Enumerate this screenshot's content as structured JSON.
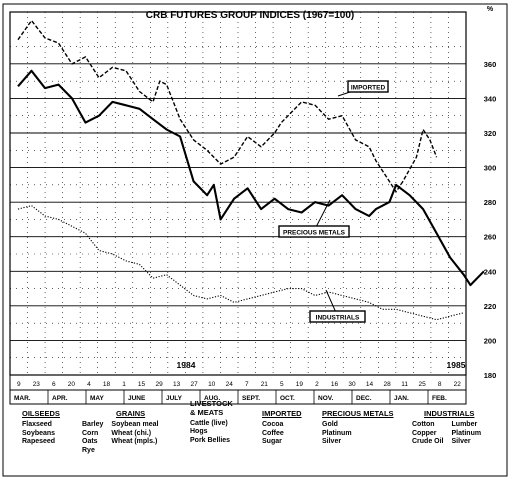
{
  "chart_data": {
    "type": "line",
    "title": "CRB FUTURES GROUP INDICES (1967=100)",
    "y_unit_label": "%",
    "ylim": [
      180,
      390
    ],
    "yticks": [
      180,
      200,
      220,
      240,
      260,
      280,
      300,
      320,
      340,
      360
    ],
    "year_labels": [
      "1984",
      "1985"
    ],
    "day_ticks": [
      "9",
      "23",
      "6",
      "20",
      "4",
      "18",
      "1",
      "15",
      "29",
      "13",
      "27",
      "10",
      "24",
      "7",
      "21",
      "5",
      "19",
      "2",
      "16",
      "30",
      "14",
      "28",
      "11",
      "25",
      "8",
      "22"
    ],
    "month_labels": [
      "MAR.",
      "APR.",
      "MAY",
      "JUNE",
      "JULY",
      "AUG.",
      "SEPT.",
      "OCT.",
      "NOV.",
      "DEC.",
      "JAN.",
      "FEB."
    ],
    "x_week_range": [
      0,
      52
    ],
    "series": [
      {
        "name": "IMPORTED",
        "style": "dashed",
        "points": [
          [
            0,
            374
          ],
          [
            2,
            385
          ],
          [
            4,
            375
          ],
          [
            6,
            372
          ],
          [
            8,
            360
          ],
          [
            10,
            364
          ],
          [
            12,
            352
          ],
          [
            14,
            358
          ],
          [
            16,
            356
          ],
          [
            18,
            344
          ],
          [
            20,
            338
          ],
          [
            21,
            350
          ],
          [
            22,
            348
          ],
          [
            24,
            328
          ],
          [
            26,
            316
          ],
          [
            28,
            310
          ],
          [
            30,
            302
          ],
          [
            32,
            306
          ],
          [
            34,
            318
          ],
          [
            36,
            312
          ],
          [
            38,
            320
          ],
          [
            39,
            326
          ],
          [
            40,
            330
          ],
          [
            42,
            338
          ],
          [
            44,
            336
          ],
          [
            46,
            328
          ],
          [
            48,
            330
          ],
          [
            50,
            316
          ],
          [
            52,
            312
          ],
          [
            53,
            304
          ],
          [
            55,
            292
          ],
          [
            56,
            286
          ],
          [
            57,
            292
          ],
          [
            59,
            306
          ],
          [
            60,
            322
          ],
          [
            61,
            316
          ],
          [
            62,
            306
          ]
        ]
      },
      {
        "name": "PRECIOUS METALS",
        "style": "solid",
        "points": [
          [
            0,
            347
          ],
          [
            2,
            356
          ],
          [
            4,
            346
          ],
          [
            6,
            348
          ],
          [
            8,
            340
          ],
          [
            10,
            326
          ],
          [
            12,
            330
          ],
          [
            14,
            338
          ],
          [
            16,
            336
          ],
          [
            18,
            334
          ],
          [
            20,
            328
          ],
          [
            22,
            322
          ],
          [
            24,
            318
          ],
          [
            26,
            292
          ],
          [
            28,
            284
          ],
          [
            29,
            290
          ],
          [
            30,
            270
          ],
          [
            32,
            282
          ],
          [
            34,
            288
          ],
          [
            36,
            276
          ],
          [
            38,
            282
          ],
          [
            40,
            276
          ],
          [
            42,
            274
          ],
          [
            44,
            280
          ],
          [
            46,
            278
          ],
          [
            48,
            284
          ],
          [
            50,
            276
          ],
          [
            52,
            272
          ],
          [
            53,
            276
          ],
          [
            55,
            280
          ],
          [
            56,
            290
          ],
          [
            58,
            284
          ],
          [
            60,
            276
          ],
          [
            62,
            262
          ],
          [
            64,
            248
          ],
          [
            66,
            238
          ],
          [
            67,
            232
          ],
          [
            69,
            240
          ]
        ]
      },
      {
        "name": "INDUSTRIALS",
        "style": "dotted",
        "points": [
          [
            0,
            276
          ],
          [
            2,
            278
          ],
          [
            4,
            272
          ],
          [
            6,
            270
          ],
          [
            8,
            266
          ],
          [
            10,
            262
          ],
          [
            12,
            252
          ],
          [
            14,
            250
          ],
          [
            16,
            246
          ],
          [
            18,
            244
          ],
          [
            20,
            236
          ],
          [
            22,
            238
          ],
          [
            24,
            232
          ],
          [
            26,
            226
          ],
          [
            28,
            224
          ],
          [
            30,
            226
          ],
          [
            32,
            222
          ],
          [
            34,
            224
          ],
          [
            36,
            226
          ],
          [
            38,
            228
          ],
          [
            40,
            230
          ],
          [
            42,
            230
          ],
          [
            44,
            226
          ],
          [
            46,
            228
          ],
          [
            48,
            226
          ],
          [
            50,
            224
          ],
          [
            52,
            222
          ],
          [
            54,
            218
          ],
          [
            56,
            218
          ],
          [
            58,
            216
          ],
          [
            60,
            214
          ],
          [
            62,
            212
          ],
          [
            64,
            214
          ],
          [
            66,
            216
          ]
        ]
      }
    ],
    "line_labels": [
      {
        "series": "IMPORTED",
        "text": "IMPORTED"
      },
      {
        "series": "PRECIOUS METALS",
        "text": "PRECIOUS METALS"
      },
      {
        "series": "INDUSTRIALS",
        "text": "INDUSTRIALS"
      }
    ],
    "grid": true
  },
  "legend": [
    {
      "heading": "OILSEEDS",
      "items": [
        "Flaxseed",
        "Soybeans",
        "Rapeseed"
      ]
    },
    {
      "heading": "GRAINS",
      "items": [
        "Barley",
        "Corn",
        "Oats",
        "Rye"
      ],
      "items2": [
        "Soybean meal",
        "Wheat (chi.)",
        "Wheat (mpls.)"
      ]
    },
    {
      "heading": "LIVESTOCK\n& MEATS",
      "items": [
        "Cattle (live)",
        "Hogs",
        "Pork Bellies"
      ]
    },
    {
      "heading": "IMPORTED",
      "items": [
        "Cocoa",
        "Coffee",
        "Sugar"
      ]
    },
    {
      "heading": "PRECIOUS METALS",
      "items": [
        "Gold",
        "Platinum",
        "Silver"
      ]
    },
    {
      "heading": "INDUSTRIALS",
      "items": [
        "Cotton",
        "Copper",
        "Crude Oil"
      ],
      "items2": [
        "Lumber",
        "Platinum",
        "Silver"
      ]
    }
  ]
}
